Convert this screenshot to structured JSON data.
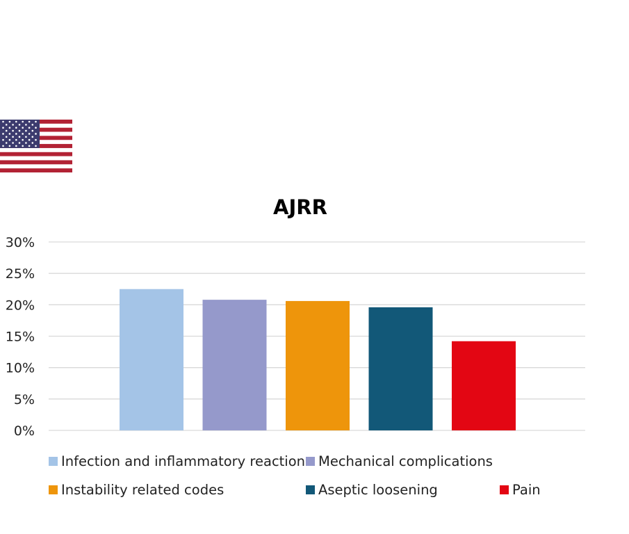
{
  "chart_data": {
    "type": "bar",
    "title": "AJRR",
    "categories": [
      "Infection and inflammatory reaction",
      "Mechanical complications",
      "Instability related codes",
      "Aseptic loosening",
      "Pain"
    ],
    "values": [
      22.5,
      20.8,
      20.6,
      19.6,
      14.2
    ],
    "colors": [
      "#a4c4e7",
      "#9599cb",
      "#ee950b",
      "#125878",
      "#e30613"
    ],
    "ylim": [
      0,
      30
    ],
    "yticks": [
      "0%",
      "5%",
      "10%",
      "15%",
      "20%",
      "25%",
      "30%"
    ],
    "grid": true,
    "legend_position": "bottom"
  },
  "icons": {
    "flag": "us-flag-icon"
  },
  "colors": {
    "grid": "#d9d9d9",
    "title": "#000000",
    "text": "#222222"
  }
}
